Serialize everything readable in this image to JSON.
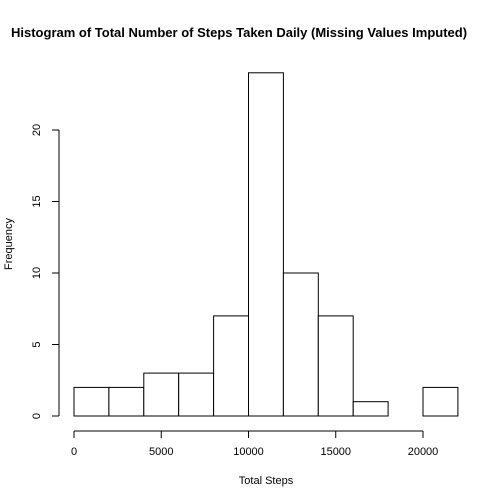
{
  "chart_data": {
    "type": "bar",
    "subtype": "histogram",
    "title": "Histogram of Total Number of Steps Taken Daily (Missing Values Imputed)",
    "xlabel": "Total Steps",
    "ylabel": "Frequency",
    "bins": [
      {
        "start": 0,
        "end": 2000,
        "count": 2
      },
      {
        "start": 2000,
        "end": 4000,
        "count": 2
      },
      {
        "start": 4000,
        "end": 6000,
        "count": 3
      },
      {
        "start": 6000,
        "end": 8000,
        "count": 3
      },
      {
        "start": 8000,
        "end": 10000,
        "count": 7
      },
      {
        "start": 10000,
        "end": 12000,
        "count": 24
      },
      {
        "start": 12000,
        "end": 14000,
        "count": 10
      },
      {
        "start": 14000,
        "end": 16000,
        "count": 7
      },
      {
        "start": 16000,
        "end": 18000,
        "count": 1
      },
      {
        "start": 18000,
        "end": 20000,
        "count": 0
      },
      {
        "start": 20000,
        "end": 22000,
        "count": 2
      }
    ],
    "xticks": [
      0,
      5000,
      10000,
      15000,
      20000
    ],
    "yticks": [
      0,
      5,
      10,
      15,
      20
    ],
    "xlim": [
      0,
      22000
    ],
    "ylim": [
      0,
      24
    ],
    "grid": false,
    "bar_fill": "#ffffff",
    "bar_stroke": "#000000"
  }
}
